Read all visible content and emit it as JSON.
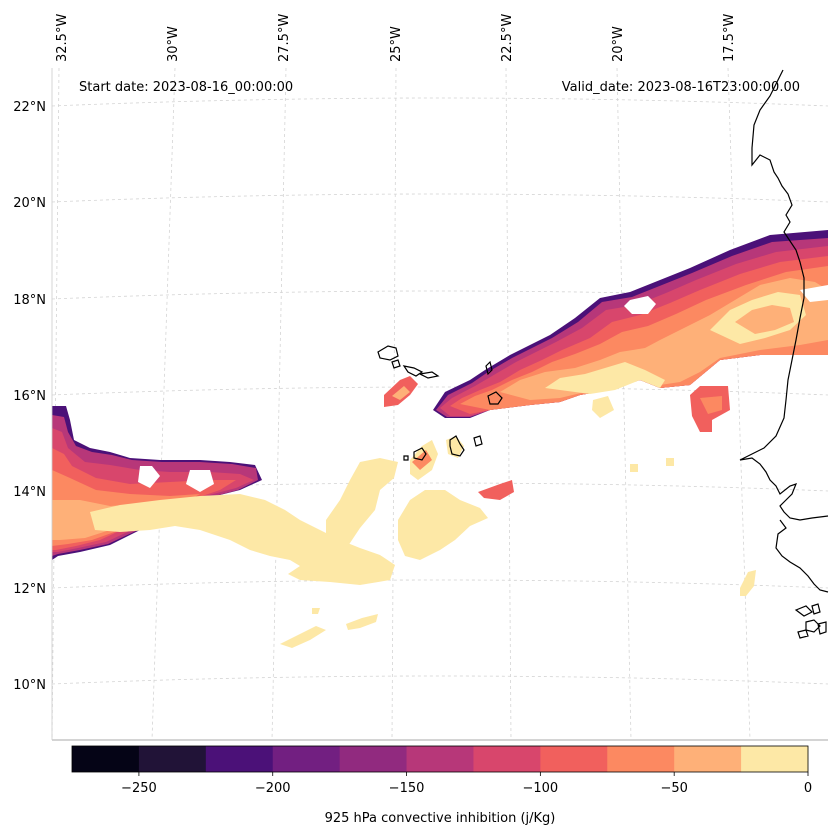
{
  "header": {
    "start_date": "Start date: 2023-08-16_00:00:00",
    "valid_date": "Valid_date: 2023-08-16T23:00:00.00"
  },
  "lon_labels": [
    "32.5°W",
    "30°W",
    "27.5°W",
    "25°W",
    "22.5°W",
    "20°W",
    "17.5°W"
  ],
  "lat_labels": [
    "22°N",
    "20°N",
    "18°N",
    "16°N",
    "14°N",
    "12°N",
    "10°N"
  ],
  "colorbar": {
    "title": "925 hPa convective inhibition (j/Kg)",
    "tick_labels": [
      "−250",
      "−200",
      "−150",
      "−100",
      "−50",
      "0"
    ],
    "levels": [
      -275,
      -250,
      -225,
      -200,
      -175,
      -150,
      -125,
      -100,
      -75,
      -50,
      -25,
      0
    ],
    "colors": [
      "#050416",
      "#211337",
      "#4b1178",
      "#721f81",
      "#912a7f",
      "#b73779",
      "#d8466c",
      "#f1605d",
      "#fc8961",
      "#feb078",
      "#fde8a6"
    ]
  },
  "colors": {
    "cin_0_25": "#fde8a6",
    "cin_25_50": "#feb078",
    "cin_50_75": "#fc8961",
    "cin_75_100": "#f1605d",
    "cin_100_125": "#d8466c",
    "cin_125_150": "#b73779",
    "cin_150_175": "#912a7f",
    "cin_175_200": "#721f81",
    "cin_200_225": "#4b1178",
    "coastline": "#000000",
    "gridline": "#d0d0d0"
  }
}
